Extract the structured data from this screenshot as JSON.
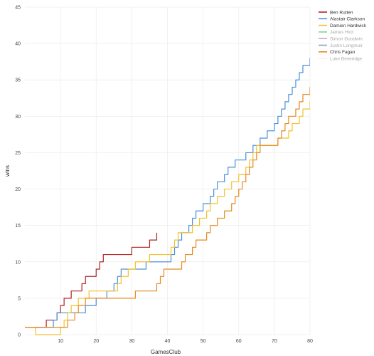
{
  "chart_data": {
    "type": "line",
    "xlabel": "GamesClub",
    "ylabel": "wins",
    "xlim": [
      0,
      80
    ],
    "ylim": [
      0,
      45
    ],
    "x_ticks": [
      10,
      20,
      30,
      40,
      50,
      60,
      70,
      80
    ],
    "y_ticks": [
      0,
      5,
      10,
      15,
      20,
      25,
      30,
      35,
      40,
      45
    ],
    "grid": true,
    "legend_position": "top-right",
    "series": [
      {
        "name": "Ben Rutten",
        "color": "#b22222",
        "points": [
          [
            0,
            1
          ],
          [
            1,
            1
          ],
          [
            2,
            1
          ],
          [
            3,
            1
          ],
          [
            4,
            1
          ],
          [
            5,
            1
          ],
          [
            6,
            2
          ],
          [
            7,
            2
          ],
          [
            8,
            2
          ],
          [
            9,
            3
          ],
          [
            10,
            4
          ],
          [
            11,
            5
          ],
          [
            12,
            5
          ],
          [
            13,
            6
          ],
          [
            14,
            6
          ],
          [
            15,
            6
          ],
          [
            16,
            7
          ],
          [
            17,
            8
          ],
          [
            18,
            8
          ],
          [
            19,
            8
          ],
          [
            20,
            9
          ],
          [
            21,
            10
          ],
          [
            22,
            11
          ],
          [
            23,
            11
          ],
          [
            24,
            11
          ],
          [
            25,
            11
          ],
          [
            26,
            11
          ],
          [
            27,
            11
          ],
          [
            28,
            11
          ],
          [
            29,
            11
          ],
          [
            30,
            12
          ],
          [
            31,
            12
          ],
          [
            32,
            12
          ],
          [
            33,
            12
          ],
          [
            34,
            12
          ],
          [
            35,
            13
          ],
          [
            36,
            13
          ],
          [
            37,
            14
          ]
        ]
      },
      {
        "name": "Alastair Clarkson",
        "color": "#4a90d9",
        "points": [
          [
            0,
            1
          ],
          [
            1,
            1
          ],
          [
            2,
            1
          ],
          [
            3,
            1
          ],
          [
            4,
            1
          ],
          [
            5,
            1
          ],
          [
            6,
            1
          ],
          [
            7,
            1
          ],
          [
            8,
            2
          ],
          [
            9,
            3
          ],
          [
            10,
            3
          ],
          [
            11,
            3
          ],
          [
            12,
            3
          ],
          [
            13,
            3
          ],
          [
            14,
            3
          ],
          [
            15,
            3
          ],
          [
            16,
            3
          ],
          [
            17,
            4
          ],
          [
            18,
            4
          ],
          [
            19,
            4
          ],
          [
            20,
            5
          ],
          [
            21,
            5
          ],
          [
            22,
            5
          ],
          [
            23,
            6
          ],
          [
            24,
            6
          ],
          [
            25,
            7
          ],
          [
            26,
            8
          ],
          [
            27,
            9
          ],
          [
            28,
            9
          ],
          [
            29,
            9
          ],
          [
            30,
            9
          ],
          [
            31,
            9
          ],
          [
            32,
            9
          ],
          [
            33,
            9
          ],
          [
            34,
            10
          ],
          [
            35,
            10
          ],
          [
            36,
            10
          ],
          [
            37,
            10
          ],
          [
            38,
            10
          ],
          [
            39,
            10
          ],
          [
            40,
            10
          ],
          [
            41,
            11
          ],
          [
            42,
            12
          ],
          [
            43,
            13
          ],
          [
            44,
            14
          ],
          [
            45,
            14
          ],
          [
            46,
            15
          ],
          [
            47,
            16
          ],
          [
            48,
            17
          ],
          [
            49,
            17
          ],
          [
            50,
            18
          ],
          [
            51,
            18
          ],
          [
            52,
            19
          ],
          [
            53,
            20
          ],
          [
            54,
            21
          ],
          [
            55,
            21
          ],
          [
            56,
            22
          ],
          [
            57,
            23
          ],
          [
            58,
            23
          ],
          [
            59,
            24
          ],
          [
            60,
            24
          ],
          [
            61,
            24
          ],
          [
            62,
            25
          ],
          [
            63,
            25
          ],
          [
            64,
            26
          ],
          [
            65,
            26
          ],
          [
            66,
            27
          ],
          [
            67,
            27
          ],
          [
            68,
            28
          ],
          [
            69,
            28
          ],
          [
            70,
            29
          ],
          [
            71,
            30
          ],
          [
            72,
            31
          ],
          [
            73,
            32
          ],
          [
            74,
            33
          ],
          [
            75,
            34
          ],
          [
            76,
            35
          ],
          [
            77,
            36
          ],
          [
            78,
            37
          ],
          [
            79,
            37
          ],
          [
            80,
            38
          ],
          [
            81,
            39
          ]
        ]
      },
      {
        "name": "Damien Hardwick",
        "color": "#f2c12e",
        "points": [
          [
            0,
            1
          ],
          [
            1,
            1
          ],
          [
            2,
            1
          ],
          [
            3,
            0
          ],
          [
            4,
            0
          ],
          [
            5,
            0
          ],
          [
            6,
            0
          ],
          [
            7,
            0
          ],
          [
            8,
            0
          ],
          [
            9,
            0
          ],
          [
            10,
            1
          ],
          [
            11,
            2
          ],
          [
            12,
            3
          ],
          [
            13,
            4
          ],
          [
            14,
            4
          ],
          [
            15,
            5
          ],
          [
            16,
            5
          ],
          [
            17,
            5
          ],
          [
            18,
            6
          ],
          [
            19,
            6
          ],
          [
            20,
            6
          ],
          [
            21,
            6
          ],
          [
            22,
            6
          ],
          [
            23,
            6
          ],
          [
            24,
            6
          ],
          [
            25,
            6
          ],
          [
            26,
            7
          ],
          [
            27,
            8
          ],
          [
            28,
            8
          ],
          [
            29,
            9
          ],
          [
            30,
            9
          ],
          [
            31,
            10
          ],
          [
            32,
            10
          ],
          [
            33,
            10
          ],
          [
            34,
            10
          ],
          [
            35,
            11
          ],
          [
            36,
            11
          ],
          [
            37,
            11
          ],
          [
            38,
            11
          ],
          [
            39,
            11
          ],
          [
            40,
            11
          ],
          [
            41,
            12
          ],
          [
            42,
            13
          ],
          [
            43,
            14
          ],
          [
            44,
            14
          ],
          [
            45,
            14
          ],
          [
            46,
            14
          ],
          [
            47,
            15
          ],
          [
            48,
            15
          ],
          [
            49,
            16
          ],
          [
            50,
            16
          ],
          [
            51,
            17
          ],
          [
            52,
            18
          ],
          [
            53,
            18
          ],
          [
            54,
            19
          ],
          [
            55,
            19
          ],
          [
            56,
            20
          ],
          [
            57,
            20
          ],
          [
            58,
            21
          ],
          [
            59,
            21
          ],
          [
            60,
            22
          ],
          [
            61,
            22
          ],
          [
            62,
            23
          ],
          [
            63,
            24
          ],
          [
            64,
            25
          ],
          [
            65,
            26
          ],
          [
            66,
            26
          ],
          [
            67,
            26
          ],
          [
            68,
            26
          ],
          [
            69,
            26
          ],
          [
            70,
            26
          ],
          [
            71,
            27
          ],
          [
            72,
            27
          ],
          [
            73,
            27
          ],
          [
            74,
            28
          ],
          [
            75,
            29
          ],
          [
            76,
            29
          ],
          [
            77,
            30
          ],
          [
            78,
            31
          ],
          [
            79,
            31
          ],
          [
            80,
            32
          ],
          [
            81,
            33
          ]
        ]
      },
      {
        "name": "James Hird",
        "color": "#8fd18f",
        "points": []
      },
      {
        "name": "Simon Goodwin",
        "color": "#c9a3d9",
        "points": []
      },
      {
        "name": "Justin Longmuir",
        "color": "#7aa6c9",
        "points": []
      },
      {
        "name": "Chris Fagan",
        "color": "#e58a1f",
        "points": [
          [
            0,
            1
          ],
          [
            1,
            1
          ],
          [
            2,
            1
          ],
          [
            3,
            1
          ],
          [
            4,
            1
          ],
          [
            5,
            1
          ],
          [
            6,
            1
          ],
          [
            7,
            1
          ],
          [
            8,
            1
          ],
          [
            9,
            1
          ],
          [
            10,
            1
          ],
          [
            11,
            1
          ],
          [
            12,
            2
          ],
          [
            13,
            2
          ],
          [
            14,
            3
          ],
          [
            15,
            4
          ],
          [
            16,
            4
          ],
          [
            17,
            5
          ],
          [
            18,
            5
          ],
          [
            19,
            5
          ],
          [
            20,
            5
          ],
          [
            21,
            5
          ],
          [
            22,
            5
          ],
          [
            23,
            5
          ],
          [
            24,
            5
          ],
          [
            25,
            5
          ],
          [
            26,
            5
          ],
          [
            27,
            5
          ],
          [
            28,
            5
          ],
          [
            29,
            5
          ],
          [
            30,
            5
          ],
          [
            31,
            6
          ],
          [
            32,
            6
          ],
          [
            33,
            6
          ],
          [
            34,
            6
          ],
          [
            35,
            6
          ],
          [
            36,
            6
          ],
          [
            37,
            7
          ],
          [
            38,
            8
          ],
          [
            39,
            9
          ],
          [
            40,
            9
          ],
          [
            41,
            9
          ],
          [
            42,
            9
          ],
          [
            43,
            9
          ],
          [
            44,
            10
          ],
          [
            45,
            11
          ],
          [
            46,
            11
          ],
          [
            47,
            12
          ],
          [
            48,
            13
          ],
          [
            49,
            13
          ],
          [
            50,
            13
          ],
          [
            51,
            14
          ],
          [
            52,
            15
          ],
          [
            53,
            15
          ],
          [
            54,
            16
          ],
          [
            55,
            16
          ],
          [
            56,
            17
          ],
          [
            57,
            17
          ],
          [
            58,
            18
          ],
          [
            59,
            19
          ],
          [
            60,
            20
          ],
          [
            61,
            21
          ],
          [
            62,
            22
          ],
          [
            63,
            23
          ],
          [
            64,
            24
          ],
          [
            65,
            25
          ],
          [
            66,
            26
          ],
          [
            67,
            26
          ],
          [
            68,
            26
          ],
          [
            69,
            26
          ],
          [
            70,
            26
          ],
          [
            71,
            27
          ],
          [
            72,
            28
          ],
          [
            73,
            29
          ],
          [
            74,
            30
          ],
          [
            75,
            30
          ],
          [
            76,
            31
          ],
          [
            77,
            32
          ],
          [
            78,
            33
          ],
          [
            79,
            33
          ],
          [
            80,
            34
          ],
          [
            81,
            35
          ]
        ]
      },
      {
        "name": "Luke Beveridge",
        "color": "#f2f2f2",
        "points": []
      }
    ]
  }
}
